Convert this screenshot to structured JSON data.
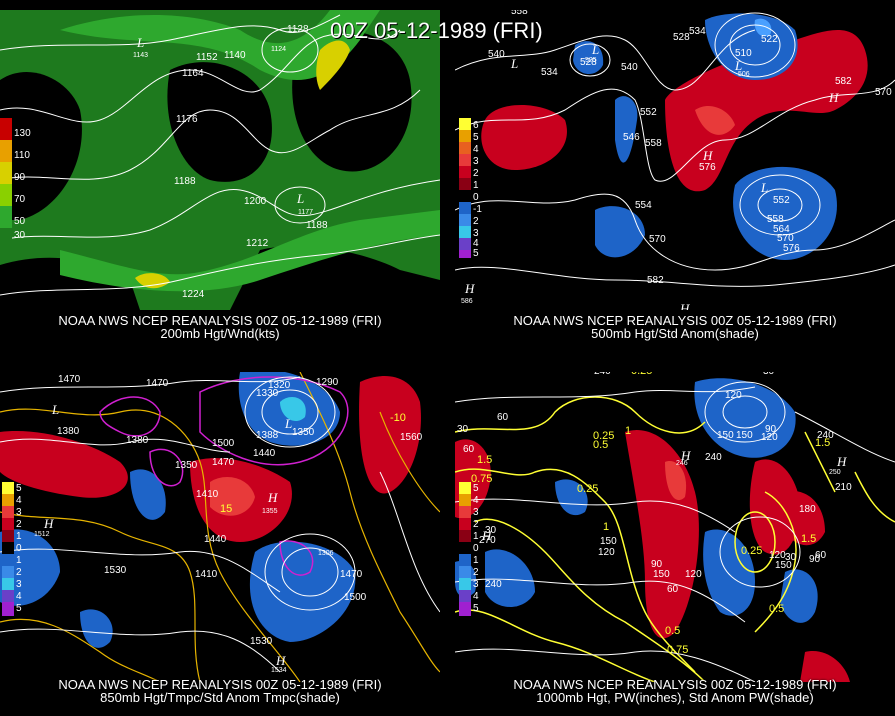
{
  "main_title": "00Z 05-12-1989 (FRI)",
  "colors": {
    "background": "#000000",
    "contour": "#ffffff",
    "precip_contour": "#ffff33",
    "temp_contour": "#e6b400",
    "positive_anomaly": "#c8001e",
    "negative_anomaly": "#1e64c8",
    "wind_green_light": "#2ea82e",
    "wind_green_dark": "#1e7a1e",
    "wind_yellow": "#d8d000"
  },
  "panels": [
    {
      "id": "p1",
      "caption_line1": "NOAA NWS NCEP REANALYSIS 00Z 05-12-1989 (FRI)",
      "caption_line2": "200mb Hgt/Wnd(kts)",
      "legend": [
        "130",
        "110",
        "90",
        "70",
        "50",
        "30"
      ],
      "contour_labels": [
        "1128",
        "1140",
        "1152",
        "1164",
        "1176",
        "1188",
        "1200",
        "1212",
        "1224",
        "1177",
        "1188",
        "1143",
        "1124"
      ]
    },
    {
      "id": "p2",
      "caption_line1": "NOAA NWS NCEP REANALYSIS 00Z 05-12-1989 (FRI)",
      "caption_line2": "500mb Hgt/Std Anom(shade)",
      "legend": [
        "6",
        "5",
        "4",
        "3",
        "2",
        "1",
        "0",
        "-1",
        "2",
        "3",
        "4",
        "5"
      ],
      "contour_labels": [
        "558",
        "540",
        "534",
        "528",
        "528",
        "540",
        "552",
        "546",
        "558",
        "510",
        "522",
        "582",
        "570",
        "576",
        "552",
        "558",
        "564",
        "570",
        "576",
        "554",
        "570",
        "582",
        "586",
        "525",
        "506"
      ]
    },
    {
      "id": "p3",
      "caption_line1": "NOAA NWS NCEP REANALYSIS 00Z 05-12-1989 (FRI)",
      "caption_line2": "850mb Hgt/Tmpc/Std Anom Tmpc(shade)",
      "legend": [
        "5",
        "4",
        "3",
        "2",
        "1",
        "0",
        "1",
        "2",
        "3",
        "4",
        "5"
      ],
      "contour_labels": [
        "1470",
        "1470",
        "1380",
        "1380",
        "1350",
        "1410",
        "1500",
        "1470",
        "1440",
        "1388",
        "1330",
        "1320",
        "1290",
        "1350",
        "1560",
        "1530",
        "1410",
        "1440",
        "1470",
        "1500",
        "1530",
        "1355",
        "1410",
        "1512",
        "1534",
        "1306"
      ]
    },
    {
      "id": "p4",
      "caption_line1": "NOAA NWS NCEP REANALYSIS 00Z 05-12-1989 (FRI)",
      "caption_line2": "1000mb Hgt, PW(inches), Std Anom PW(shade)",
      "legend": [
        "5",
        "4",
        "3",
        "2",
        "1",
        "0",
        "1",
        "2",
        "3",
        "4",
        "5"
      ],
      "contour_labels": [
        "240",
        "30",
        "120",
        "150",
        "240",
        "60",
        "90",
        "120",
        "150",
        "180",
        "210",
        "240",
        "270",
        "30",
        "60",
        "90",
        "120",
        "150",
        "240",
        "0.25",
        "0.5",
        "1",
        "1.5",
        "0.75",
        "0.25",
        "0.5",
        "1.5",
        "1.5",
        "0.25",
        "0.5",
        "0.75",
        "1"
      ]
    }
  ]
}
